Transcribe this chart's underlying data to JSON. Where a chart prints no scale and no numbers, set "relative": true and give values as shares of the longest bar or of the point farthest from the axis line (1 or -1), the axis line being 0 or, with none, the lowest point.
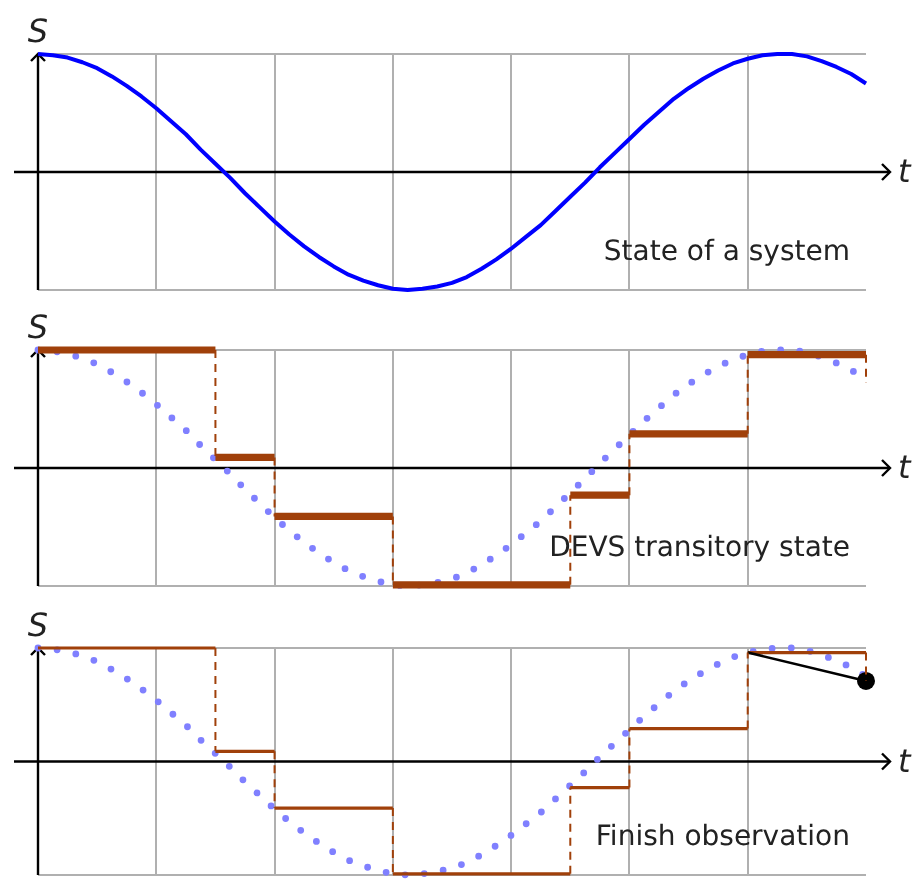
{
  "chart_data": [
    {
      "type": "line",
      "xlabel": "t",
      "ylabel": "S",
      "annotations": [
        "State of a system"
      ],
      "relative": true,
      "tick_labels": false,
      "grid": true,
      "categories": [
        null,
        null,
        null,
        null,
        null,
        null,
        null,
        null,
        null,
        null,
        null,
        null,
        null,
        null,
        null,
        null,
        null,
        null,
        null,
        null,
        null,
        null,
        null,
        null,
        null,
        null,
        null,
        null,
        null,
        null,
        null,
        null,
        null,
        null,
        null,
        null,
        null,
        null,
        null,
        null,
        null,
        null,
        null,
        null,
        null,
        null,
        null,
        null,
        null,
        null,
        null,
        null,
        null,
        null,
        null,
        null,
        null
      ],
      "series": [
        {
          "color": "#0000ff",
          "values": [
            1,
            0.99,
            0.97,
            0.93,
            0.88,
            0.81,
            0.73,
            0.64,
            0.54,
            0.43,
            0.32,
            0.19,
            0.07,
            -0.05,
            -0.18,
            -0.3,
            -0.42,
            -0.53,
            -0.63,
            -0.72,
            -0.8,
            -0.87,
            -0.92,
            -0.96,
            -0.99,
            -1,
            -0.99,
            -0.97,
            -0.94,
            -0.89,
            -0.82,
            -0.74,
            -0.65,
            -0.55,
            -0.45,
            -0.33,
            -0.21,
            -0.09,
            0.04,
            0.16,
            0.28,
            0.4,
            0.51,
            0.62,
            0.71,
            0.79,
            0.86,
            0.92,
            0.96,
            0.99,
            1,
            1,
            0.98,
            0.94,
            0.89,
            0.83,
            0.75
          ]
        }
      ]
    },
    {
      "type": "line",
      "xlabel": "t",
      "ylabel": "S",
      "annotations": [
        "DEVS transitory state"
      ],
      "relative": true,
      "tick_labels": false,
      "grid": true,
      "categories": [
        null,
        null,
        null,
        null,
        null,
        null,
        null,
        null,
        null,
        null,
        null,
        null,
        null,
        null,
        null,
        null,
        null,
        null,
        null,
        null,
        null,
        null,
        null,
        null,
        null,
        null,
        null,
        null,
        null,
        null,
        null,
        null,
        null,
        null,
        null,
        null,
        null,
        null,
        null,
        null,
        null,
        null,
        null,
        null,
        null,
        null,
        null,
        null,
        null,
        null,
        null,
        null,
        null,
        null,
        null,
        null,
        null
      ],
      "series": [
        {
          "color": "#8080ff",
          "line_style": "dotted",
          "values": [
            1,
            0.99,
            0.97,
            0.93,
            0.88,
            0.81,
            0.73,
            0.64,
            0.54,
            0.43,
            0.32,
            0.19,
            0.07,
            -0.05,
            -0.18,
            -0.3,
            -0.42,
            -0.53,
            -0.63,
            -0.72,
            -0.8,
            -0.87,
            -0.92,
            -0.96,
            -0.99,
            -1,
            -0.99,
            -0.97,
            -0.94,
            -0.89,
            -0.82,
            -0.74,
            -0.65,
            -0.55,
            -0.45,
            -0.33,
            -0.21,
            -0.09,
            0.04,
            0.16,
            0.28,
            0.4,
            0.51,
            0.62,
            0.71,
            0.79,
            0.86,
            0.92,
            0.96,
            0.99,
            1,
            1,
            0.98,
            0.94,
            0.89,
            0.83,
            0.75
          ]
        },
        {
          "type": "step",
          "color": "#a0400a",
          "values": [
            1,
            1,
            1,
            1,
            1,
            1,
            1,
            1,
            1,
            1,
            1,
            1,
            0.09,
            0.09,
            0.09,
            0.09,
            -0.41,
            -0.41,
            -0.41,
            -0.41,
            -0.41,
            -0.41,
            -0.41,
            -0.41,
            -0.99,
            -0.99,
            -0.99,
            -0.99,
            -0.99,
            -0.99,
            -0.99,
            -0.99,
            -0.99,
            -0.99,
            -0.99,
            -0.99,
            -0.23,
            -0.23,
            -0.23,
            -0.23,
            0.29,
            0.29,
            0.29,
            0.29,
            0.29,
            0.29,
            0.29,
            0.29,
            0.96,
            0.96,
            0.96,
            0.96,
            0.96,
            0.96,
            0.96,
            0.96,
            0.72
          ]
        }
      ]
    },
    {
      "type": "line",
      "xlabel": "t",
      "ylabel": "S",
      "annotations": [
        "Finish observation"
      ],
      "relative": true,
      "tick_labels": false,
      "grid": true,
      "categories": [
        null,
        null,
        null,
        null,
        null,
        null,
        null,
        null,
        null,
        null,
        null,
        null,
        null,
        null,
        null,
        null,
        null,
        null,
        null,
        null,
        null,
        null,
        null,
        null,
        null,
        null,
        null,
        null,
        null,
        null,
        null,
        null,
        null,
        null,
        null,
        null,
        null,
        null,
        null,
        null,
        null,
        null,
        null,
        null,
        null,
        null,
        null,
        null,
        null,
        null,
        null,
        null,
        null,
        null,
        null,
        null,
        null
      ],
      "series": [
        {
          "color": "#8080ff",
          "line_style": "dotted",
          "values": [
            1,
            0.99,
            0.97,
            0.93,
            0.88,
            0.81,
            0.73,
            0.64,
            0.54,
            0.43,
            0.32,
            0.19,
            0.07,
            -0.05,
            -0.18,
            -0.3,
            -0.42,
            -0.53,
            -0.63,
            -0.72,
            -0.8,
            -0.87,
            -0.92,
            -0.96,
            -0.99,
            -1,
            -0.99,
            -0.97,
            -0.94,
            -0.89,
            -0.82,
            -0.74,
            -0.65,
            -0.55,
            -0.45,
            -0.33,
            -0.21,
            -0.09,
            0.04,
            0.16,
            0.28,
            0.4,
            0.51,
            0.62,
            0.71,
            0.79,
            0.86,
            0.92,
            0.96,
            0.99,
            1,
            1,
            0.98,
            0.94,
            0.89,
            0.83,
            0.75
          ]
        },
        {
          "type": "step",
          "color": "#a0400a",
          "values": [
            1,
            1,
            1,
            1,
            1,
            1,
            1,
            1,
            1,
            1,
            1,
            1,
            0.09,
            0.09,
            0.09,
            0.09,
            -0.41,
            -0.41,
            -0.41,
            -0.41,
            -0.41,
            -0.41,
            -0.41,
            -0.41,
            -0.99,
            -0.99,
            -0.99,
            -0.99,
            -0.99,
            -0.99,
            -0.99,
            -0.99,
            -0.99,
            -0.99,
            -0.99,
            -0.99,
            -0.23,
            -0.23,
            -0.23,
            -0.23,
            0.29,
            0.29,
            0.29,
            0.29,
            0.29,
            0.29,
            0.29,
            0.29,
            0.96,
            0.96,
            0.96,
            0.96,
            0.96,
            0.96,
            0.96,
            0.96,
            0.71
          ]
        },
        {
          "type": "line",
          "color": "#000000",
          "values": [
            null,
            null,
            null,
            null,
            null,
            null,
            null,
            null,
            null,
            null,
            null,
            null,
            null,
            null,
            null,
            null,
            null,
            null,
            null,
            null,
            null,
            null,
            null,
            null,
            null,
            null,
            null,
            null,
            null,
            null,
            null,
            null,
            null,
            null,
            null,
            null,
            null,
            null,
            null,
            null,
            null,
            null,
            null,
            null,
            null,
            null,
            null,
            null,
            0.96,
            null,
            null,
            null,
            null,
            null,
            null,
            null,
            0.71
          ]
        },
        {
          "type": "scatter",
          "color": "#000000",
          "marker": "circle",
          "values": [
            null,
            null,
            null,
            null,
            null,
            null,
            null,
            null,
            null,
            null,
            null,
            null,
            null,
            null,
            null,
            null,
            null,
            null,
            null,
            null,
            null,
            null,
            null,
            null,
            null,
            null,
            null,
            null,
            null,
            null,
            null,
            null,
            null,
            null,
            null,
            null,
            null,
            null,
            null,
            null,
            null,
            null,
            null,
            null,
            null,
            null,
            null,
            null,
            null,
            null,
            null,
            null,
            null,
            null,
            null,
            null,
            0.71
          ]
        }
      ]
    }
  ]
}
